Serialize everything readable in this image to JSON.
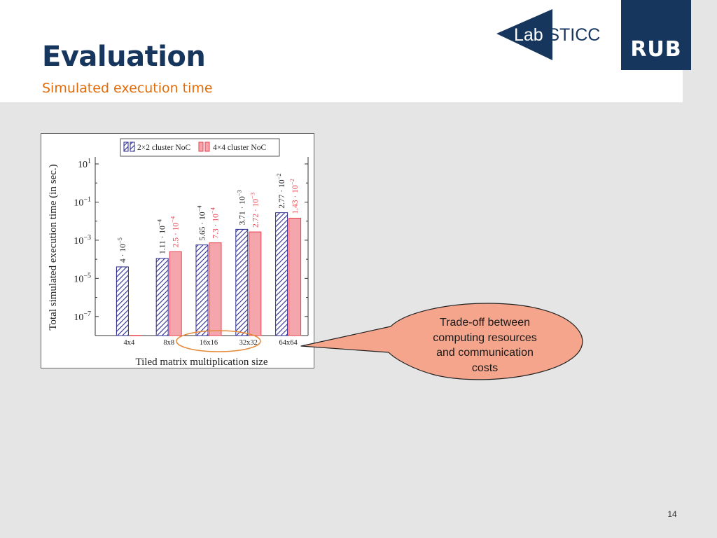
{
  "slide": {
    "title": "Evaluation",
    "subtitle": "Simulated execution time",
    "page_number": "14",
    "callout": "Trade-off between\ncomputing resources\nand communication\ncosts"
  },
  "logos": {
    "labsticc": "Lab-STICC",
    "rub": "RUB"
  },
  "colors": {
    "title": "#17365d",
    "subtitle": "#e36c0a",
    "series1": "#2b2b8f",
    "series2_fill": "#f4a6ac",
    "series2_stroke": "#e8414f",
    "callout_fill": "#f4a58c",
    "highlight_ellipse": "#e58a3a"
  },
  "chart_data": {
    "type": "bar",
    "scale": "log",
    "categories": [
      "4x4",
      "8x8",
      "16x16",
      "32x32",
      "64x64"
    ],
    "series": [
      {
        "name": "2×2 cluster NoC",
        "values": [
          4e-05,
          0.000111,
          0.000565,
          0.00371,
          0.0277
        ],
        "labels": [
          "4 · 10^-5",
          "1.11 · 10^-4",
          "5.65 · 10^-4",
          "3.71 · 10^-3",
          "2.77 · 10^-2"
        ]
      },
      {
        "name": "4×4 cluster NoC",
        "values": [
          null,
          0.00025,
          0.00073,
          0.00272,
          0.0143
        ],
        "labels": [
          "",
          "2.5 · 10^-4",
          "7.3 · 10^-4",
          "2.72 · 10^-3",
          "1.43 · 10^-2"
        ]
      }
    ],
    "ylabel": "Total simulated execution time (in sec.)",
    "xlabel": "Tiled matrix multiplication size",
    "y_ticks": [
      "10^1",
      "10^-1",
      "10^-3",
      "10^-5",
      "10^-7"
    ],
    "legend": "top",
    "highlighted_categories": [
      "16x16",
      "32x32"
    ]
  }
}
